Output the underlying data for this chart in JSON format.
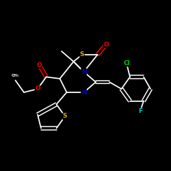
{
  "background": "#000000",
  "atom_colors": {
    "S": "#DAA520",
    "O": "#FF0000",
    "N": "#0000CD",
    "Cl": "#00CC00",
    "F": "#00CCCC",
    "C": "#FFFFFF"
  },
  "bond_color": "#FFFFFF",
  "fs": 6.5
}
